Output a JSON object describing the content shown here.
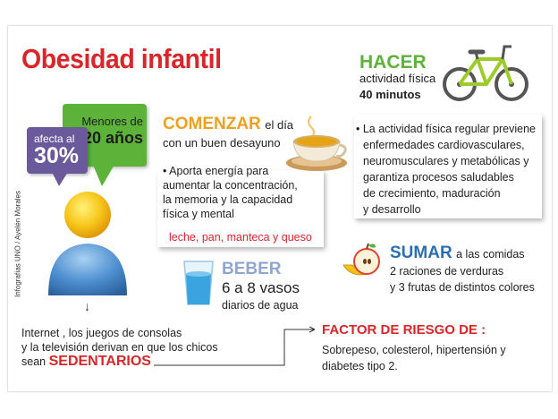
{
  "title": "Obesidad infantil",
  "credit": "Infografías UNO / Ayelén Morales",
  "bubbles": {
    "green_line1": "Menores de",
    "green_line2": "20 años",
    "purple_line1": "afecta al",
    "purple_line2": "30%"
  },
  "cause": {
    "line1": "Internet , los juegos de consolas",
    "line2": "y la televisión derivan en que los chicos",
    "line3_prefix": "sean",
    "highlight": "SEDENTARIOS"
  },
  "comenzar": {
    "word": "COMENZAR",
    "rest": "el día",
    "line2": "con un buen desayuno",
    "bullet": "• Aporta  energía para",
    "body2": "aumentar la concentración,",
    "body3": "la memoria y la capacidad",
    "body4": "física y mental",
    "foods": "leche, pan, manteca y queso"
  },
  "hacer": {
    "word": "HACER",
    "line1": "actividad física",
    "line2": "40 minutos",
    "body1": "• La actividad física regular previene",
    "body2": "enfermedades cardiovasculares,",
    "body3": "neuromusculares y metabólicas  y",
    "body4": "garantiza procesos saludables",
    "body5": "de crecimiento, maduración",
    "body6": "y desarrollo"
  },
  "beber": {
    "word": "BEBER",
    "line1": "6 a 8 vasos",
    "line2": "diarios de agua"
  },
  "sumar": {
    "word": "SUMAR",
    "rest": "a las comidas",
    "line2": "2 raciones de verduras",
    "line3": "y 3 frutas de distintos colores"
  },
  "factor": {
    "title": "FACTOR DE RIESGO DE :",
    "line1": "Sobrepeso, colesterol, hipertensión y",
    "line2": "diabetes tipo 2."
  },
  "icons": {
    "person": "person-icon",
    "cup": "tea-cup-icon",
    "bike": "bicycle-icon",
    "glass": "water-glass-icon",
    "fruit": "apple-banana-icon"
  },
  "colors": {
    "red": "#d9262a",
    "green": "#5db23a",
    "purple": "#6b5a9b",
    "orange": "#f0a020",
    "blue": "#2a6fb3",
    "lightblue": "#8fa6d0"
  }
}
